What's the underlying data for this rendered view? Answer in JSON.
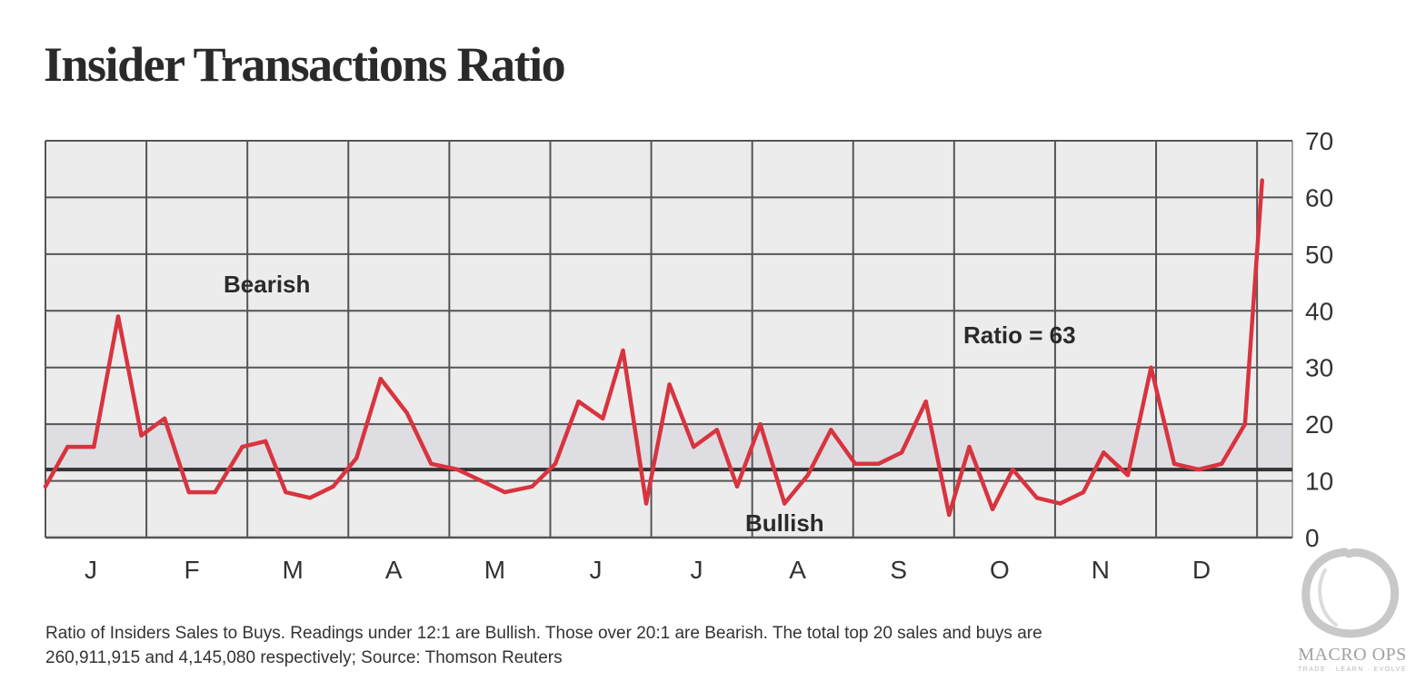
{
  "colors": {
    "line": "#d8343f",
    "grid": "#555555",
    "plot_bg": "#ececec",
    "band": "#dedee2",
    "threshold": "#333333"
  },
  "chart_data": {
    "type": "line",
    "title": "Insider Transactions Ratio",
    "xlabel": "",
    "ylabel": "",
    "categories": [
      "J",
      "F",
      "M",
      "A",
      "M",
      "J",
      "J",
      "A",
      "S",
      "O",
      "N",
      "D"
    ],
    "ylim": [
      0,
      70
    ],
    "yticks": [
      0,
      10,
      20,
      30,
      40,
      50,
      60,
      70
    ],
    "y_axis_side": "right",
    "grid": true,
    "threshold_line": 12,
    "neutral_band": [
      12,
      20
    ],
    "annotations": {
      "bearish": "Bearish",
      "bullish": "Bullish",
      "ratio": "Ratio = 63"
    },
    "series": [
      {
        "name": "Ratio of Insiders Sales to Buys",
        "x": [
          0,
          0.22,
          0.48,
          0.72,
          0.95,
          1.18,
          1.42,
          1.68,
          1.95,
          2.18,
          2.38,
          2.62,
          2.85,
          3.08,
          3.32,
          3.58,
          3.82,
          4.08,
          4.32,
          4.55,
          4.82,
          5.05,
          5.28,
          5.52,
          5.72,
          5.95,
          6.18,
          6.42,
          6.65,
          6.85,
          7.08,
          7.32,
          7.55,
          7.78,
          8.02,
          8.25,
          8.48,
          8.72,
          8.95,
          9.15,
          9.38,
          9.58,
          9.82,
          10.05,
          10.28,
          10.48,
          10.72,
          10.95,
          11.18,
          11.42,
          11.65,
          11.88
        ],
        "values": [
          9,
          16,
          16,
          39,
          18,
          21,
          8,
          8,
          16,
          17,
          8,
          7,
          9,
          14,
          28,
          22,
          13,
          12,
          10,
          8,
          9,
          13,
          24,
          21,
          33,
          6,
          27,
          16,
          19,
          9,
          20,
          6,
          11,
          19,
          13,
          13,
          15,
          24,
          4,
          16,
          5,
          12,
          7,
          6,
          8,
          15,
          11,
          30,
          13,
          12,
          13,
          20
        ]
      },
      {
        "name": "Final spike",
        "x": [
          11.88,
          12.05
        ],
        "values": [
          20,
          63
        ]
      }
    ]
  },
  "caption": {
    "line1": "Ratio of Insiders Sales to Buys. Readings under 12:1 are Bullish. Those over 20:1 are Bearish. The total top 20 sales and buys are",
    "line2": "260,911,915 and 4,145,080 respectively; Source: Thomson Reuters"
  },
  "logo": {
    "name": "MACRO OPS",
    "tagline": "TRADE · LEARN · EVOLVE"
  }
}
